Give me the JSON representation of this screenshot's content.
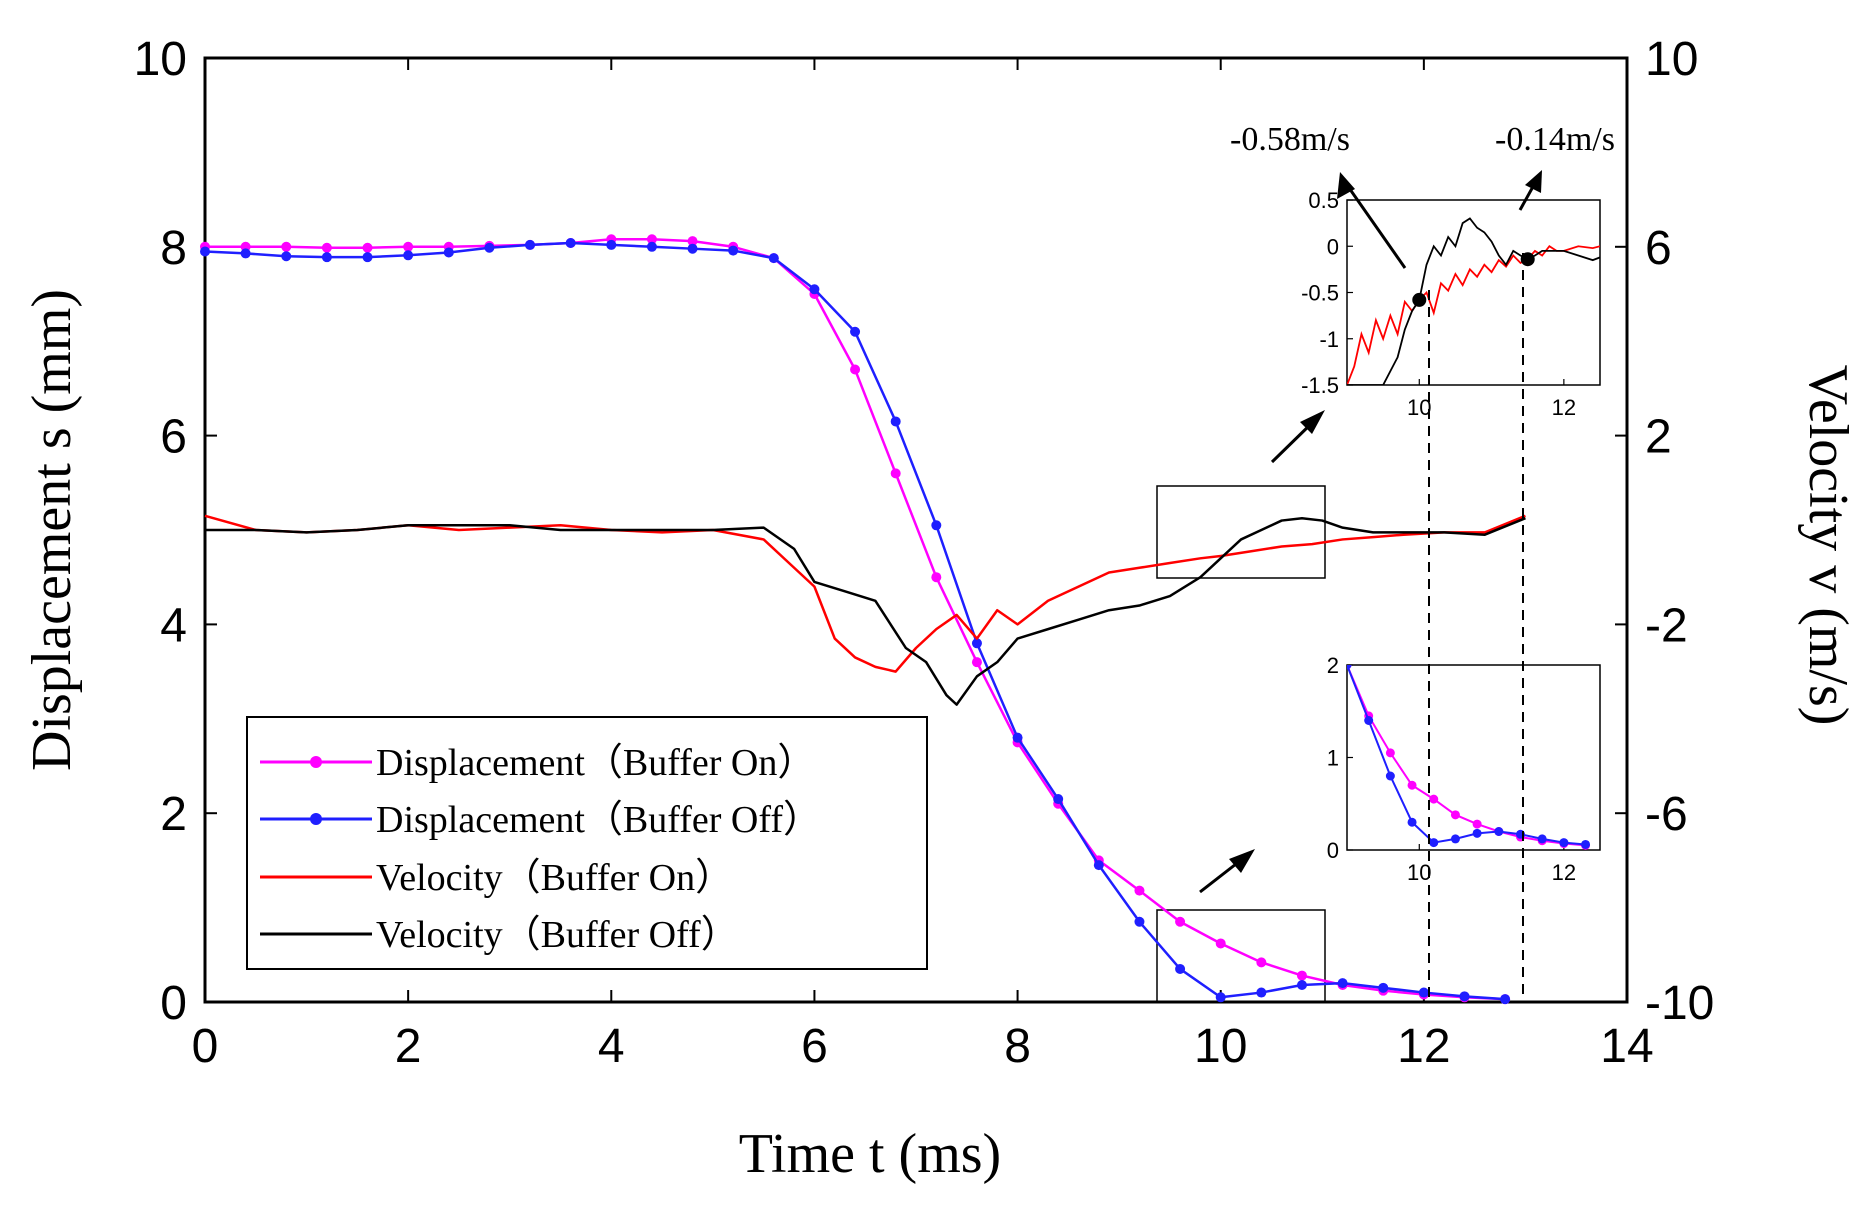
{
  "chart_data": {
    "type": "line",
    "xlabel": "Time t (ms)",
    "ylabel": "Displacement s (mm)",
    "y2label": "Velocity v (m/s)",
    "xlim": [
      0,
      14
    ],
    "ylim": [
      0,
      10
    ],
    "y2lim": [
      -10,
      10
    ],
    "xticks": [
      "0",
      "2",
      "4",
      "6",
      "8",
      "10",
      "12",
      "14"
    ],
    "yticks": [
      "0",
      "2",
      "4",
      "6",
      "8",
      "10"
    ],
    "y2ticks": [
      "-10",
      "-6",
      "-2",
      "2",
      "6",
      "10"
    ],
    "legend_position": "bottom-left",
    "series": [
      {
        "name": "Displacement（Buffer On）",
        "axis": "left",
        "color": "#ff00ff",
        "marker": true,
        "x": [
          0,
          0.4,
          0.8,
          1.2,
          1.6,
          2.0,
          2.4,
          2.8,
          3.2,
          3.6,
          4.0,
          4.4,
          4.8,
          5.2,
          5.6,
          6.0,
          6.4,
          6.8,
          7.2,
          7.6,
          8.0,
          8.4,
          8.8,
          9.2,
          9.6,
          10.0,
          10.4,
          10.8,
          11.2,
          11.6,
          12.0,
          12.4,
          12.8
        ],
        "y": [
          8.0,
          8.0,
          8.0,
          7.99,
          7.99,
          8.0,
          8.0,
          8.01,
          8.02,
          8.04,
          8.08,
          8.08,
          8.06,
          8.0,
          7.88,
          7.5,
          6.7,
          5.6,
          4.5,
          3.6,
          2.75,
          2.1,
          1.5,
          1.18,
          0.85,
          0.62,
          0.42,
          0.28,
          0.18,
          0.12,
          0.08,
          0.05,
          0.03
        ]
      },
      {
        "name": "Displacement（Buffer Off）",
        "axis": "left",
        "color": "#1f1fff",
        "marker": true,
        "x": [
          0,
          0.4,
          0.8,
          1.2,
          1.6,
          2.0,
          2.4,
          2.8,
          3.2,
          3.6,
          4.0,
          4.4,
          4.8,
          5.2,
          5.6,
          6.0,
          6.4,
          6.8,
          7.2,
          7.6,
          8.0,
          8.4,
          8.8,
          9.2,
          9.6,
          10.0,
          10.4,
          10.8,
          11.2,
          11.6,
          12.0,
          12.4,
          12.8
        ],
        "y": [
          7.95,
          7.93,
          7.9,
          7.89,
          7.89,
          7.91,
          7.94,
          7.99,
          8.02,
          8.04,
          8.02,
          8.0,
          7.98,
          7.96,
          7.88,
          7.55,
          7.1,
          6.15,
          5.05,
          3.8,
          2.8,
          2.15,
          1.45,
          0.85,
          0.35,
          0.05,
          0.1,
          0.18,
          0.2,
          0.15,
          0.1,
          0.06,
          0.03
        ]
      },
      {
        "name": "Velocity（Buffer On）",
        "axis": "right",
        "color": "#ff0000",
        "marker": false,
        "x": [
          0,
          0.5,
          1.0,
          1.5,
          2.0,
          2.5,
          3.0,
          3.5,
          4.0,
          4.5,
          5.0,
          5.5,
          5.8,
          6.0,
          6.2,
          6.4,
          6.6,
          6.8,
          7.0,
          7.2,
          7.4,
          7.6,
          7.8,
          8.0,
          8.3,
          8.6,
          8.9,
          9.2,
          9.5,
          9.8,
          10.0,
          10.3,
          10.6,
          10.9,
          11.2,
          11.5,
          11.8,
          12.2,
          12.6,
          13.0
        ],
        "y": [
          0.3,
          0.0,
          -0.05,
          0.0,
          0.1,
          0.0,
          0.05,
          0.1,
          0.0,
          -0.05,
          0.0,
          -0.2,
          -0.8,
          -1.2,
          -2.3,
          -2.7,
          -2.9,
          -3.0,
          -2.5,
          -2.1,
          -1.8,
          -2.3,
          -1.7,
          -2.0,
          -1.5,
          -1.2,
          -0.9,
          -0.8,
          -0.7,
          -0.6,
          -0.55,
          -0.45,
          -0.35,
          -0.3,
          -0.2,
          -0.15,
          -0.1,
          -0.05,
          -0.05,
          0.3
        ]
      },
      {
        "name": "Velocity（Buffer Off）",
        "axis": "right",
        "color": "#000000",
        "marker": false,
        "x": [
          0,
          0.5,
          1.0,
          1.5,
          2.0,
          2.5,
          3.0,
          3.5,
          4.0,
          4.5,
          5.0,
          5.5,
          5.8,
          6.0,
          6.3,
          6.6,
          6.9,
          7.1,
          7.3,
          7.4,
          7.6,
          7.8,
          8.0,
          8.3,
          8.6,
          8.9,
          9.2,
          9.5,
          9.8,
          10.0,
          10.2,
          10.4,
          10.6,
          10.8,
          11.0,
          11.2,
          11.5,
          11.8,
          12.2,
          12.6,
          13.0
        ],
        "y": [
          0.0,
          0.0,
          -0.05,
          0.0,
          0.1,
          0.1,
          0.1,
          0.0,
          0.0,
          0.0,
          0.0,
          0.05,
          -0.4,
          -1.1,
          -1.3,
          -1.5,
          -2.5,
          -2.8,
          -3.5,
          -3.7,
          -3.1,
          -2.8,
          -2.3,
          -2.1,
          -1.9,
          -1.7,
          -1.6,
          -1.4,
          -1.0,
          -0.6,
          -0.2,
          0.0,
          0.2,
          0.25,
          0.2,
          0.05,
          -0.05,
          -0.05,
          -0.05,
          -0.1,
          0.25
        ]
      }
    ],
    "annotations": {
      "label_1": "-0.58m/s",
      "label_2": "-0.14m/s",
      "marker_1": {
        "x": 10.0,
        "v": -0.58
      },
      "marker_2": {
        "x": 11.5,
        "v": -0.14
      }
    },
    "insets": [
      {
        "name": "velocity-zoom",
        "xlim": [
          9.0,
          12.5
        ],
        "ylim": [
          -1.5,
          0.5
        ],
        "xticks": [
          "10",
          "12"
        ],
        "yticks": [
          "0.5",
          "0",
          "-0.5",
          "-1",
          "-1.5"
        ],
        "series_on": {
          "x": [
            9.0,
            9.1,
            9.2,
            9.3,
            9.4,
            9.5,
            9.6,
            9.7,
            9.8,
            9.9,
            10.0,
            10.1,
            10.2,
            10.3,
            10.4,
            10.5,
            10.6,
            10.7,
            10.8,
            10.9,
            11.0,
            11.1,
            11.2,
            11.3,
            11.4,
            11.5,
            11.6,
            11.7,
            11.8,
            11.9,
            12.0,
            12.2,
            12.4,
            12.5
          ],
          "v": [
            -1.5,
            -1.3,
            -0.95,
            -1.15,
            -0.8,
            -1.0,
            -0.75,
            -0.95,
            -0.6,
            -0.7,
            -0.58,
            -0.5,
            -0.72,
            -0.4,
            -0.48,
            -0.3,
            -0.42,
            -0.25,
            -0.33,
            -0.2,
            -0.28,
            -0.15,
            -0.22,
            -0.1,
            -0.18,
            -0.14,
            -0.05,
            -0.1,
            0.0,
            -0.05,
            -0.05,
            0.0,
            -0.02,
            0.0
          ]
        },
        "series_off": {
          "x": [
            9.0,
            9.3,
            9.5,
            9.7,
            9.8,
            9.9,
            10.0,
            10.1,
            10.2,
            10.3,
            10.4,
            10.5,
            10.6,
            10.7,
            10.8,
            10.9,
            11.0,
            11.1,
            11.2,
            11.3,
            11.4,
            11.5,
            11.6,
            11.7,
            11.8,
            12.0,
            12.2,
            12.4,
            12.5
          ],
          "v": [
            -1.5,
            -1.5,
            -1.5,
            -1.2,
            -0.9,
            -0.7,
            -0.58,
            -0.2,
            0.0,
            -0.1,
            0.1,
            0.0,
            0.25,
            0.3,
            0.2,
            0.15,
            0.05,
            -0.1,
            -0.2,
            -0.05,
            -0.1,
            -0.14,
            -0.1,
            -0.05,
            -0.05,
            -0.05,
            -0.1,
            -0.15,
            -0.12
          ]
        }
      },
      {
        "name": "displacement-zoom",
        "xlim": [
          9.0,
          12.5
        ],
        "ylim": [
          0,
          2
        ],
        "xticks": [
          "10",
          "12"
        ],
        "yticks": [
          "2",
          "1",
          "0"
        ],
        "series_on": {
          "x": [
            9.0,
            9.3,
            9.6,
            9.9,
            10.2,
            10.5,
            10.8,
            11.1,
            11.4,
            11.7,
            12.0,
            12.3
          ],
          "y": [
            2.0,
            1.45,
            1.05,
            0.7,
            0.55,
            0.38,
            0.28,
            0.2,
            0.14,
            0.1,
            0.07,
            0.05
          ]
        },
        "series_off": {
          "x": [
            9.0,
            9.3,
            9.6,
            9.9,
            10.2,
            10.5,
            10.8,
            11.1,
            11.4,
            11.7,
            12.0,
            12.3
          ],
          "y": [
            2.0,
            1.4,
            0.8,
            0.3,
            0.08,
            0.12,
            0.18,
            0.2,
            0.17,
            0.12,
            0.08,
            0.06
          ]
        }
      }
    ]
  }
}
